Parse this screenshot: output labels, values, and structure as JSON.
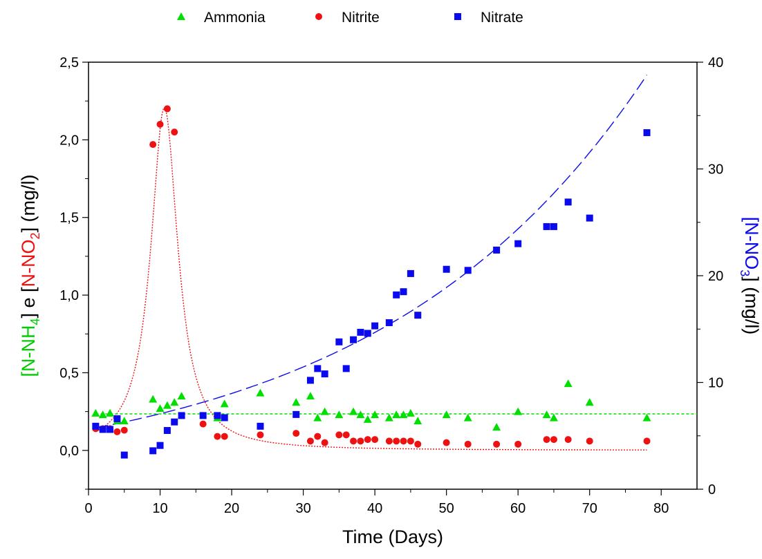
{
  "chart_data": {
    "type": "scatter",
    "legend": [
      {
        "label": "Ammonia",
        "marker": "triangle",
        "color": "#00e000"
      },
      {
        "label": "Nitrite",
        "marker": "circle",
        "color": "#ee1111"
      },
      {
        "label": "Nitrate",
        "marker": "square",
        "color": "#0a0aee"
      }
    ],
    "legend_position": "top",
    "xlabel": "Time (Days)",
    "ylabel_left": {
      "parts": [
        {
          "text": "[N-NH",
          "color": "#00cc00"
        },
        {
          "text": "4",
          "color": "#00cc00",
          "sub": true
        },
        {
          "text": "]  e  [",
          "color": "#000000"
        },
        {
          "text": "N-NO",
          "color": "#ee1111"
        },
        {
          "text": "2",
          "color": "#ee1111",
          "sub": true
        },
        {
          "text": "]  (mg/l)",
          "color": "#000000"
        }
      ]
    },
    "ylabel_right": {
      "parts": [
        {
          "text": "[N-NO",
          "color": "#0a0aee"
        },
        {
          "text": "3",
          "color": "#0a0aee",
          "sub": true
        },
        {
          "text": "]  (mg/l)",
          "color": "#000000"
        }
      ]
    },
    "xlim": [
      0,
      85
    ],
    "ylim_left": [
      -0.25,
      2.5
    ],
    "ylim_right": [
      0,
      40
    ],
    "xticks": [
      0,
      10,
      20,
      30,
      40,
      50,
      60,
      70,
      80
    ],
    "xtick_labels": [
      "0",
      "10",
      "20",
      "30",
      "40",
      "50",
      "60",
      "70",
      "80"
    ],
    "yticks_left": [
      0.0,
      0.5,
      1.0,
      1.5,
      2.0,
      2.5
    ],
    "ytick_labels_left": [
      "0,0",
      "0,5",
      "1,0",
      "1,5",
      "2,0",
      "2,5"
    ],
    "yticks_right": [
      0,
      10,
      20,
      30,
      40
    ],
    "ytick_labels_right": [
      "0",
      "10",
      "20",
      "30",
      "40"
    ],
    "grid": false,
    "series": [
      {
        "name": "Ammonia",
        "axis": "left",
        "marker": "triangle",
        "color": "#00e000",
        "x": [
          1,
          2,
          3,
          4,
          5,
          9,
          10,
          11,
          12,
          13,
          18,
          19,
          24,
          29,
          31,
          32,
          33,
          35,
          37,
          38,
          39,
          40,
          42,
          43,
          44,
          45,
          46,
          50,
          53,
          57,
          60,
          64,
          65,
          67,
          70,
          78
        ],
        "y": [
          0.24,
          0.23,
          0.24,
          0.19,
          0.19,
          0.33,
          0.27,
          0.29,
          0.31,
          0.35,
          0.21,
          0.3,
          0.37,
          0.31,
          0.35,
          0.21,
          0.25,
          0.23,
          0.25,
          0.23,
          0.2,
          0.23,
          0.21,
          0.23,
          0.23,
          0.24,
          0.19,
          0.23,
          0.21,
          0.15,
          0.25,
          0.23,
          0.21,
          0.43,
          0.31,
          0.21
        ]
      },
      {
        "name": "Nitrite",
        "axis": "left",
        "marker": "circle",
        "color": "#ee1111",
        "x": [
          1,
          2,
          3,
          4,
          5,
          9,
          10,
          11,
          12,
          16,
          18,
          19,
          24,
          29,
          31,
          32,
          33,
          35,
          36,
          37,
          38,
          39,
          40,
          42,
          43,
          44,
          45,
          46,
          50,
          53,
          57,
          60,
          64,
          65,
          67,
          70,
          78
        ],
        "y": [
          0.14,
          0.14,
          0.14,
          0.12,
          0.13,
          1.97,
          2.1,
          2.2,
          2.05,
          0.17,
          0.09,
          0.09,
          0.1,
          0.11,
          0.06,
          0.09,
          0.05,
          0.1,
          0.1,
          0.06,
          0.06,
          0.07,
          0.07,
          0.06,
          0.06,
          0.06,
          0.06,
          0.04,
          0.05,
          0.04,
          0.04,
          0.04,
          0.07,
          0.07,
          0.07,
          0.06,
          0.06
        ]
      },
      {
        "name": "Nitrate",
        "axis": "right",
        "marker": "square",
        "color": "#0a0aee",
        "x": [
          1,
          2,
          3,
          4,
          5,
          9,
          10,
          11,
          12,
          13,
          16,
          18,
          19,
          24,
          29,
          31,
          32,
          33,
          35,
          36,
          37,
          38,
          39,
          40,
          42,
          43,
          44,
          45,
          46,
          50,
          53,
          57,
          60,
          64,
          65,
          67,
          70,
          78
        ],
        "y": [
          5.9,
          5.6,
          5.6,
          6.6,
          3.2,
          3.6,
          4.1,
          5.5,
          6.3,
          6.9,
          6.9,
          6.9,
          6.7,
          5.9,
          7.0,
          10.2,
          11.3,
          10.8,
          13.8,
          11.3,
          14.0,
          14.7,
          14.6,
          15.3,
          15.6,
          18.2,
          18.5,
          20.2,
          16.3,
          20.6,
          20.5,
          22.4,
          23.0,
          24.6,
          24.6,
          26.9,
          25.4,
          33.4
        ]
      }
    ],
    "fits": [
      {
        "name": "Nitrite fit",
        "axis": "left",
        "color": "#ee1111",
        "dash": "2 2",
        "kind": "lorentz",
        "y0": 0.0,
        "amplitude": 2.21,
        "center": 10.6,
        "hwhm": 2.3,
        "tail": [
          35,
          0.012,
          78,
          0.0
        ]
      },
      {
        "name": "Nitrate fit",
        "axis": "right",
        "color": "#0a0aee",
        "dash": "18 7",
        "kind": "exp",
        "a": 4.81,
        "b": 0.8,
        "k": 0.0265,
        "x_range": [
          1,
          78
        ]
      },
      {
        "name": "Ammonia mean",
        "axis": "left",
        "color": "#00dd00",
        "dash": "4 3",
        "kind": "const",
        "value": 0.235,
        "x_range": [
          1,
          85
        ]
      }
    ]
  }
}
